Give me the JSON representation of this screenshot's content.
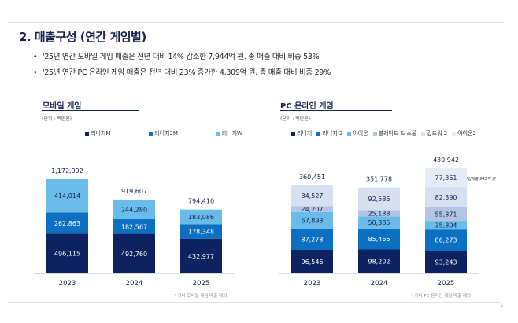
{
  "title": "2. 매출구성 (연간 게임별)",
  "bullets": [
    "'25년 연간 모바일 게임 매출은 전년 대비 14% 감소한 7,944억 원. 총 매출 대비 비중 53%",
    "'25년 연간 PC 온라인 게임 매출은 전년 대비 23% 증가한 4,309억 원. 총 매출 대비 비중 29%"
  ],
  "page_number": "7",
  "chart_data": [
    {
      "type": "bar",
      "stacked": true,
      "title": "모바일 게임",
      "unit": "(단위 : 백만원)",
      "categories": [
        "2023",
        "2024",
        "2025"
      ],
      "legend_position": "top",
      "series": [
        {
          "name": "리니지M",
          "color": "#0d2260",
          "values": [
            496115,
            492760,
            432977
          ],
          "labels": [
            "496,115",
            "492,760",
            "432,977"
          ]
        },
        {
          "name": "리니지2M",
          "color": "#0b6fc2",
          "values": [
            262863,
            182567,
            178348
          ],
          "labels": [
            "262,863",
            "182,567",
            "178,348"
          ]
        },
        {
          "name": "리니지W",
          "color": "#69bbea",
          "values": [
            414014,
            244280,
            183086
          ],
          "labels": [
            "414,014",
            "244,280",
            "183,086"
          ]
        }
      ],
      "totals": [
        "1,172,992",
        "919,607",
        "794,410"
      ],
      "footnote": "* 기타 모바일 게임 매출 제외"
    },
    {
      "type": "bar",
      "stacked": true,
      "title": "PC 온라인 게임",
      "unit": "(단위 : 백만원)",
      "categories": [
        "2023",
        "2024",
        "2025"
      ],
      "legend_position": "top",
      "series": [
        {
          "name": "리니지",
          "color": "#0d2260",
          "values": [
            96546,
            98202,
            93243
          ],
          "labels": [
            "96,546",
            "98,202",
            "93,243"
          ]
        },
        {
          "name": "리니지 2",
          "color": "#0b6fc2",
          "values": [
            87278,
            85466,
            86273
          ],
          "labels": [
            "87,278",
            "85,466",
            "86,273"
          ]
        },
        {
          "name": "아이온",
          "color": "#69bbea",
          "values": [
            67893,
            50385,
            35804
          ],
          "labels": [
            "67,893",
            "50,385",
            "35,804"
          ]
        },
        {
          "name": "블레이드 & 소울",
          "color": "#b4c4e4",
          "values": [
            24207,
            25138,
            55871
          ],
          "labels": [
            "24,207",
            "25,138",
            "55,871"
          ]
        },
        {
          "name": "길드워 2",
          "color": "#d7e0f1",
          "values": [
            84527,
            92586,
            82390
          ],
          "labels": [
            "84,527",
            "92,586",
            "82,390"
          ]
        },
        {
          "name": "아이온2",
          "color": "#e6ecf7",
          "values": [
            0,
            0,
            77361
          ],
          "labels": [
            "",
            "",
            "77,361"
          ]
        }
      ],
      "totals": [
        "360,451",
        "351,778",
        "430,942"
      ],
      "annotation": "* 영업매출 941억 원",
      "footnote": "* 기타 PC 온라인 게임 매출 제외"
    }
  ]
}
